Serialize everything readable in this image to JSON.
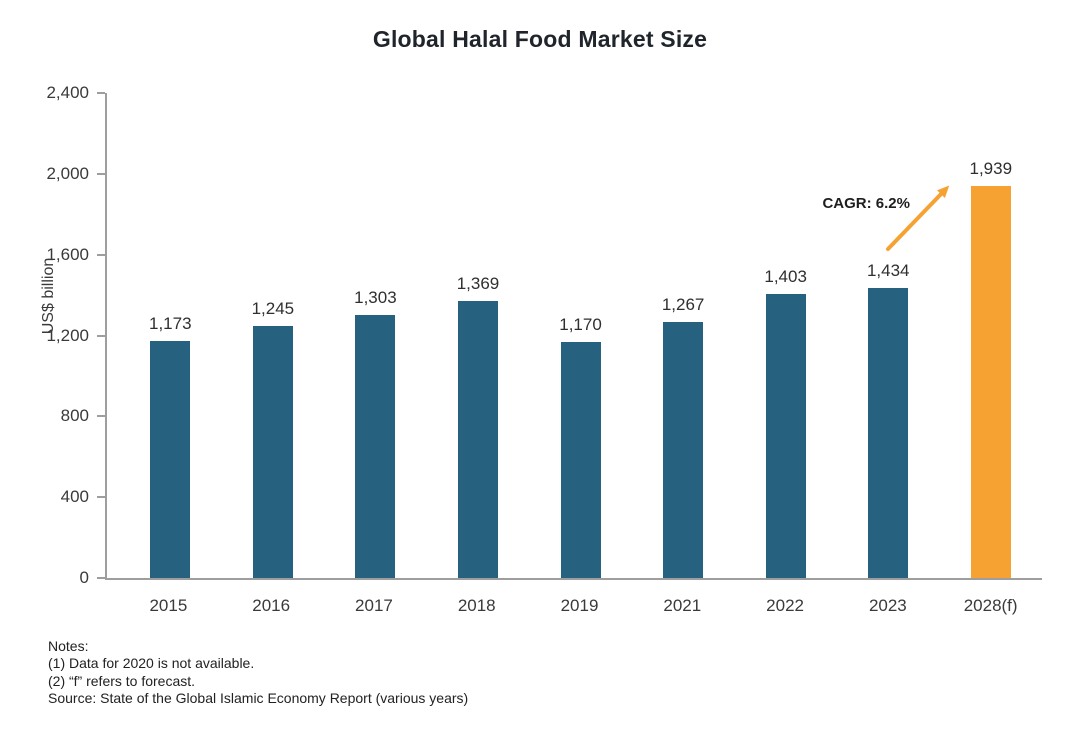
{
  "chart_data": {
    "type": "bar",
    "title": "Global Halal Food Market Size",
    "xlabel": "",
    "ylabel": "US$ billion",
    "ylim": [
      0,
      2400
    ],
    "ytick_step": 400,
    "yticks": [
      "0",
      "400",
      "800",
      "1,200",
      "1,600",
      "2,000",
      "2,400"
    ],
    "categories": [
      "2015",
      "2016",
      "2017",
      "2018",
      "2019",
      "2021",
      "2022",
      "2023",
      "2028(f)"
    ],
    "values": [
      1173,
      1245,
      1303,
      1369,
      1170,
      1267,
      1403,
      1434,
      1939
    ],
    "value_labels": [
      "1,173",
      "1,245",
      "1,303",
      "1,369",
      "1,170",
      "1,267",
      "1,403",
      "1,434",
      "1,939"
    ],
    "highlight_index": 8,
    "grid": false,
    "legend": "none",
    "colors": {
      "bar": "#26617F",
      "highlight": "#F6A233",
      "axis": "#9E9E9E",
      "text": "#3A3A3A"
    },
    "annotation": {
      "label": "CAGR: 6.2%",
      "arrow_color": "#F6A233"
    }
  },
  "notes": {
    "lines": [
      "Notes:",
      "(1) Data for 2020 is not available.",
      "(2) “f” refers to forecast.",
      "Source: State of the Global Islamic Economy Report (various years)"
    ]
  }
}
